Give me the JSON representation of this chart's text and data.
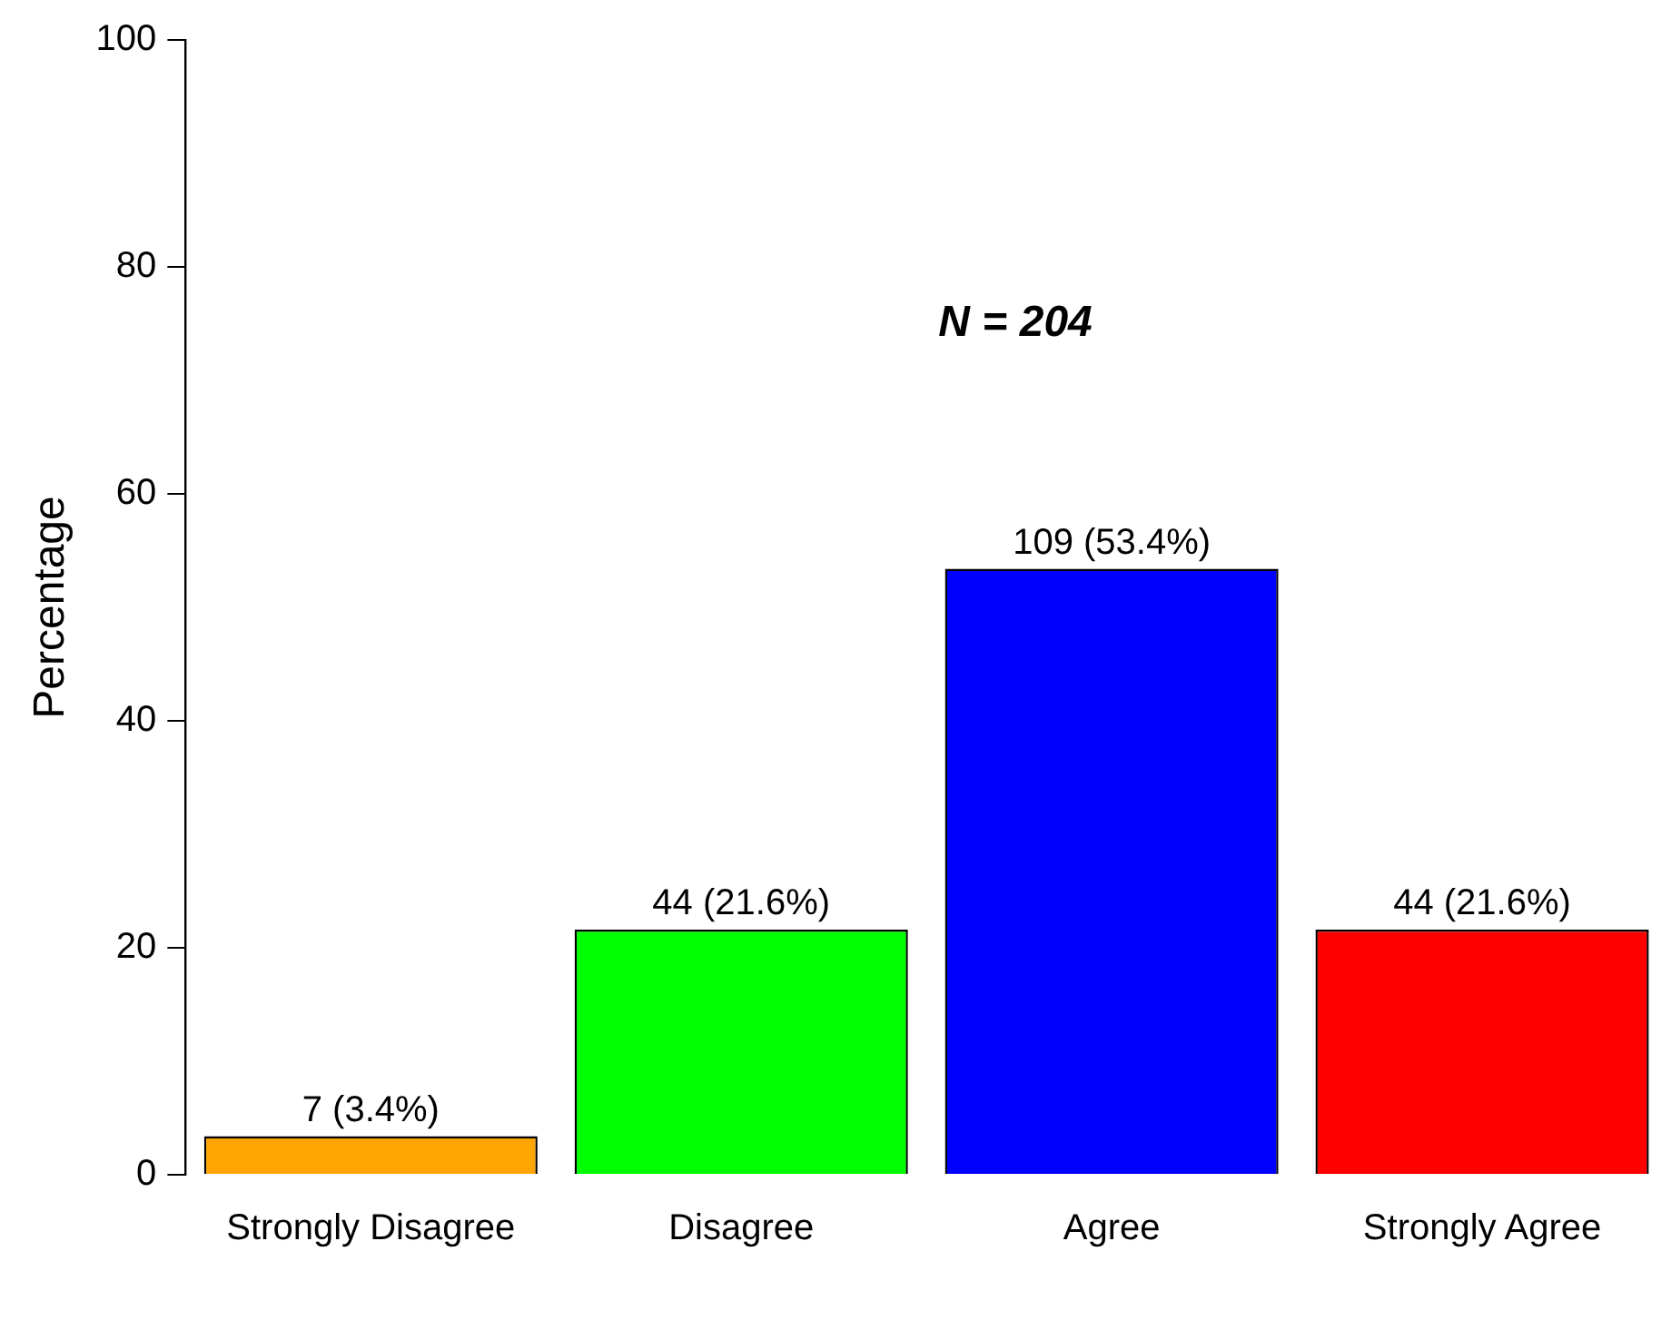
{
  "chart_data": {
    "type": "bar",
    "ylabel": "Percentage",
    "categories": [
      "Strongly Disagree",
      "Disagree",
      "Agree",
      "Strongly Agree"
    ],
    "values": [
      3.4,
      21.6,
      53.4,
      21.6
    ],
    "colors": [
      "#ffa500",
      "#00ff00",
      "#0000ff",
      "#ff0000"
    ],
    "value_labels": [
      "7 (3.4%)",
      "44 (21.6%)",
      "109 (53.4%)",
      "44 (21.6%)"
    ],
    "ylim": [
      0,
      100
    ],
    "yticks": [
      0,
      20,
      40,
      60,
      80,
      100
    ],
    "annotations": [
      "N = 204"
    ],
    "grid": false,
    "legend": false
  }
}
